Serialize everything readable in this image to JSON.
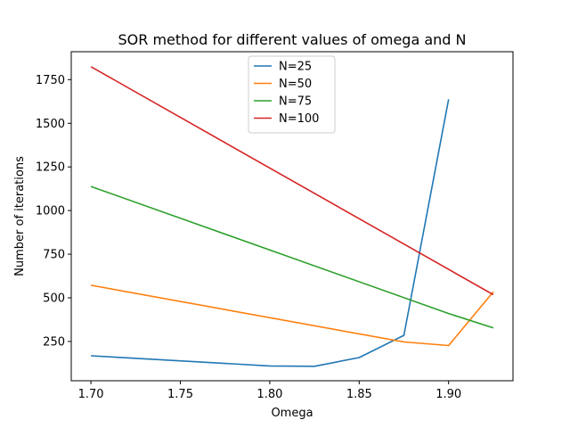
{
  "chart_data": {
    "type": "line",
    "title": "SOR method for different values of omega and N",
    "xlabel": "Omega",
    "ylabel": "Number of iterations",
    "xlim": [
      1.689,
      1.936
    ],
    "ylim": [
      25,
      1910
    ],
    "xticks": [
      1.7,
      1.75,
      1.8,
      1.85,
      1.9
    ],
    "xtick_labels": [
      "1.70",
      "1.75",
      "1.80",
      "1.85",
      "1.90"
    ],
    "yticks": [
      250,
      500,
      750,
      1000,
      1250,
      1500,
      1750
    ],
    "ytick_labels": [
      "250",
      "500",
      "750",
      "1000",
      "1250",
      "1500",
      "1750"
    ],
    "grid": false,
    "legend_position": "upper center",
    "series": [
      {
        "name": "N=25",
        "color": "#1f77b4",
        "x": [
          1.7,
          1.8,
          1.825,
          1.85,
          1.875,
          1.9
        ],
        "y": [
          168,
          110,
          108,
          158,
          285,
          1637
        ]
      },
      {
        "name": "N=50",
        "color": "#ff7f0e",
        "x": [
          1.7,
          1.875,
          1.9,
          1.925
        ],
        "y": [
          572,
          247,
          227,
          535
        ]
      },
      {
        "name": "N=75",
        "color": "#2ca02c",
        "x": [
          1.7,
          1.9,
          1.925
        ],
        "y": [
          1138,
          410,
          328
        ]
      },
      {
        "name": "N=100",
        "color": "#d62728",
        "x": [
          1.7,
          1.925
        ],
        "y": [
          1824,
          518
        ]
      }
    ]
  }
}
